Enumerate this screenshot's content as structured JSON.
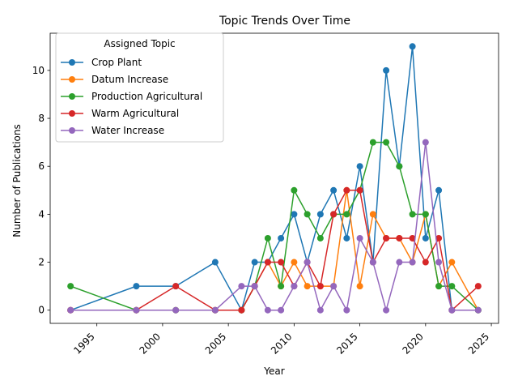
{
  "chart_data": {
    "type": "line",
    "title": "Topic Trends Over Time",
    "xlabel": "Year",
    "ylabel": "Number of Publications",
    "xlim": [
      1991.45,
      2025.55
    ],
    "ylim": [
      -0.55,
      11.55
    ],
    "x_ticks": [
      1995,
      2000,
      2005,
      2010,
      2015,
      2020,
      2025
    ],
    "x_tick_labels": [
      "1995",
      "2000",
      "2005",
      "2010",
      "2015",
      "2020",
      "2025"
    ],
    "x_tick_rotation": 45,
    "y_ticks": [
      0,
      2,
      4,
      6,
      8,
      10
    ],
    "y_tick_labels": [
      "0",
      "2",
      "4",
      "6",
      "8",
      "10"
    ],
    "grid": false,
    "legend": {
      "title": "Assigned Topic",
      "position": "upper-left"
    },
    "x": [
      1993,
      1998,
      2001,
      2004,
      2006,
      2007,
      2008,
      2009,
      2010,
      2011,
      2012,
      2013,
      2014,
      2015,
      2016,
      2017,
      2018,
      2019,
      2020,
      2021,
      2022,
      2024
    ],
    "series": [
      {
        "name": "Crop Plant",
        "color": "#1f77b4",
        "values": [
          0,
          1,
          1,
          2,
          0,
          2,
          2,
          3,
          4,
          2,
          4,
          5,
          3,
          6,
          2,
          10,
          6,
          11,
          3,
          5,
          0,
          0
        ]
      },
      {
        "name": "Datum Increase",
        "color": "#ff7f0e",
        "values": [
          0,
          0,
          0,
          0,
          0,
          1,
          2,
          1,
          2,
          1,
          1,
          1,
          5,
          1,
          4,
          3,
          3,
          2,
          4,
          1,
          2,
          0
        ]
      },
      {
        "name": "Production Agricultural",
        "color": "#2ca02c",
        "values": [
          1,
          0,
          0,
          0,
          0,
          1,
          3,
          1,
          5,
          4,
          3,
          4,
          4,
          5,
          7,
          7,
          6,
          4,
          4,
          1,
          1,
          0
        ]
      },
      {
        "name": "Warm Agricultural",
        "color": "#d62728",
        "values": [
          0,
          0,
          1,
          0,
          0,
          1,
          2,
          2,
          1,
          2,
          1,
          4,
          5,
          5,
          2,
          3,
          3,
          3,
          2,
          3,
          0,
          1
        ]
      },
      {
        "name": "Water Increase",
        "color": "#9467bd",
        "values": [
          0,
          0,
          0,
          0,
          1,
          1,
          0,
          0,
          1,
          2,
          0,
          1,
          0,
          3,
          2,
          0,
          2,
          2,
          7,
          2,
          0,
          0
        ]
      }
    ]
  }
}
